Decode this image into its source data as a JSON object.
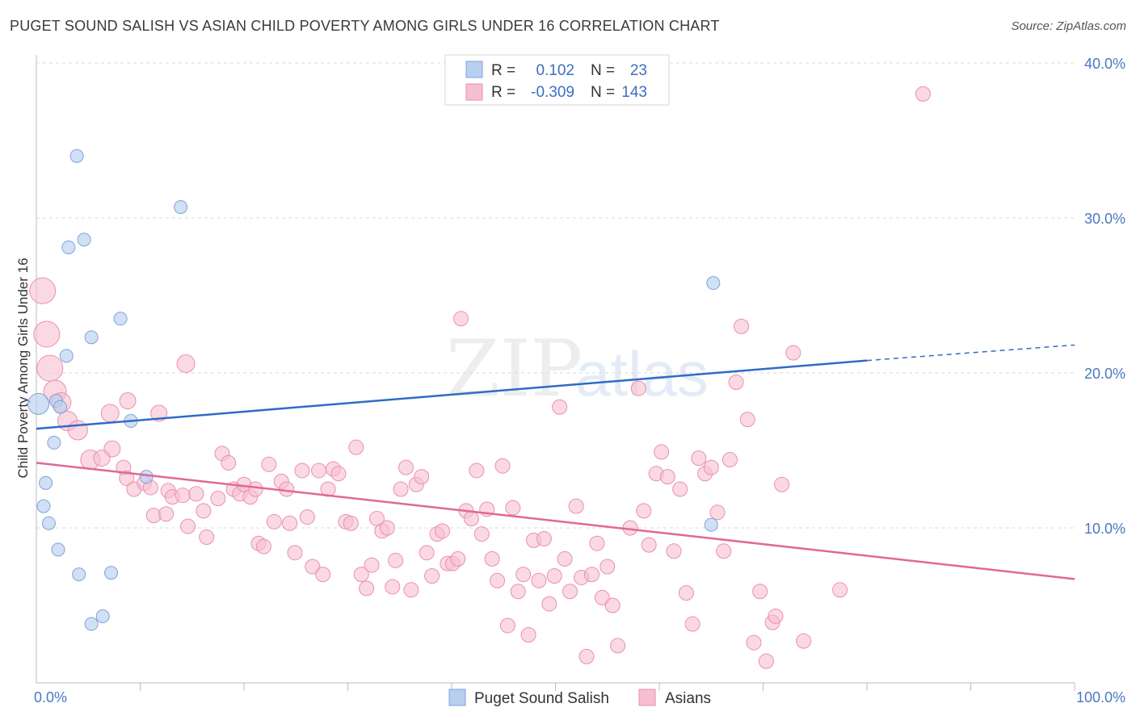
{
  "title": "PUGET SOUND SALISH VS ASIAN CHILD POVERTY AMONG GIRLS UNDER 16 CORRELATION CHART",
  "source": "Source: ZipAtlas.com",
  "watermark": {
    "zip": "ZIP",
    "atlas": "atlas"
  },
  "colors": {
    "salish_fill": "#b8cff0",
    "salish_stroke": "#7ea3dc",
    "salish_line": "#2f6cc4",
    "asian_fill": "#f7bfd0",
    "asian_stroke": "#eb8fae",
    "asian_line": "#e06896",
    "grid": "#d9d9d9",
    "tick_label": "#4a78c2"
  },
  "legend": {
    "rows": [
      {
        "r_label": "R =",
        "r_value": "0.102",
        "n_label": "N =",
        "n_value": "23"
      },
      {
        "r_label": "R =",
        "r_value": "-0.309",
        "n_label": "N =",
        "n_value": "143"
      }
    ]
  },
  "chart_data": {
    "type": "scatter",
    "xlabel": "",
    "ylabel": "Child Poverty Among Girls Under 16",
    "xlim": [
      0,
      100
    ],
    "ylim": [
      0,
      40
    ],
    "x_tick_labels": [
      "0.0%",
      "100.0%"
    ],
    "y_ticks": [
      10,
      20,
      30,
      40
    ],
    "y_tick_labels": [
      "10.0%",
      "20.0%",
      "30.0%",
      "40.0%"
    ],
    "grid": true,
    "legend_position": "top-center",
    "series": [
      {
        "name": "Puget Sound Salish",
        "trend": {
          "x": [
            0,
            80
          ],
          "y": [
            16.4,
            20.8
          ],
          "dashed_to": [
            100,
            21.8
          ]
        },
        "points": [
          [
            0.2,
            18.0,
            13
          ],
          [
            3.9,
            34.0,
            8
          ],
          [
            13.9,
            30.7,
            8
          ],
          [
            4.6,
            28.6,
            8
          ],
          [
            3.1,
            28.1,
            8
          ],
          [
            8.1,
            23.5,
            8
          ],
          [
            5.3,
            22.3,
            8
          ],
          [
            2.9,
            21.1,
            8
          ],
          [
            1.9,
            18.2,
            8
          ],
          [
            2.3,
            17.8,
            8
          ],
          [
            9.1,
            16.9,
            8
          ],
          [
            1.7,
            15.5,
            8
          ],
          [
            10.6,
            13.3,
            8
          ],
          [
            0.9,
            12.9,
            8
          ],
          [
            0.7,
            11.4,
            8
          ],
          [
            1.2,
            10.3,
            8
          ],
          [
            2.1,
            8.6,
            8
          ],
          [
            4.1,
            7.0,
            8
          ],
          [
            7.2,
            7.1,
            8
          ],
          [
            6.4,
            4.3,
            8
          ],
          [
            5.3,
            3.8,
            8
          ],
          [
            65.0,
            10.2,
            8
          ],
          [
            65.2,
            25.8,
            8
          ]
        ]
      },
      {
        "name": "Asians",
        "trend": {
          "x": [
            0,
            100
          ],
          "y": [
            14.2,
            6.7
          ]
        },
        "points": [
          [
            0.6,
            25.3,
            16
          ],
          [
            1.0,
            22.5,
            16
          ],
          [
            1.3,
            20.3,
            16
          ],
          [
            1.8,
            18.8,
            14
          ],
          [
            2.4,
            18.1,
            12
          ],
          [
            3.0,
            16.9,
            12
          ],
          [
            4.0,
            16.3,
            12
          ],
          [
            7.1,
            17.4,
            11
          ],
          [
            8.8,
            18.2,
            10
          ],
          [
            11.8,
            17.4,
            10
          ],
          [
            14.4,
            20.6,
            11
          ],
          [
            7.3,
            15.1,
            10
          ],
          [
            5.2,
            14.4,
            12
          ],
          [
            6.3,
            14.5,
            10
          ],
          [
            8.4,
            13.9,
            9
          ],
          [
            8.7,
            13.2,
            9
          ],
          [
            9.4,
            12.5,
            9
          ],
          [
            10.4,
            12.9,
            9
          ],
          [
            11.0,
            12.6,
            9
          ],
          [
            11.3,
            10.8,
            9
          ],
          [
            12.5,
            10.9,
            9
          ],
          [
            12.7,
            12.4,
            9
          ],
          [
            13.1,
            12.0,
            9
          ],
          [
            14.1,
            12.1,
            9
          ],
          [
            14.6,
            10.1,
            9
          ],
          [
            15.4,
            12.2,
            9
          ],
          [
            16.1,
            11.1,
            9
          ],
          [
            16.4,
            9.4,
            9
          ],
          [
            17.5,
            11.9,
            9
          ],
          [
            17.9,
            14.8,
            9
          ],
          [
            18.5,
            14.2,
            9
          ],
          [
            19.0,
            12.5,
            9
          ],
          [
            19.6,
            12.2,
            9
          ],
          [
            20.0,
            12.8,
            9
          ],
          [
            20.6,
            12.0,
            9
          ],
          [
            21.1,
            12.5,
            9
          ],
          [
            21.4,
            9.0,
            9
          ],
          [
            21.9,
            8.8,
            9
          ],
          [
            22.4,
            14.1,
            9
          ],
          [
            22.9,
            10.4,
            9
          ],
          [
            23.6,
            13.0,
            9
          ],
          [
            24.1,
            12.5,
            9
          ],
          [
            24.4,
            10.3,
            9
          ],
          [
            24.9,
            8.4,
            9
          ],
          [
            25.6,
            13.7,
            9
          ],
          [
            26.1,
            10.7,
            9
          ],
          [
            26.6,
            7.5,
            9
          ],
          [
            27.2,
            13.7,
            9
          ],
          [
            27.6,
            7.0,
            9
          ],
          [
            28.1,
            12.5,
            9
          ],
          [
            28.6,
            13.8,
            9
          ],
          [
            29.1,
            13.5,
            9
          ],
          [
            29.8,
            10.4,
            9
          ],
          [
            30.3,
            10.3,
            9
          ],
          [
            30.8,
            15.2,
            9
          ],
          [
            31.3,
            7.0,
            9
          ],
          [
            31.8,
            6.1,
            9
          ],
          [
            32.3,
            7.6,
            9
          ],
          [
            32.8,
            10.6,
            9
          ],
          [
            33.3,
            9.8,
            9
          ],
          [
            33.8,
            10.0,
            9
          ],
          [
            34.3,
            6.2,
            9
          ],
          [
            34.6,
            7.9,
            9
          ],
          [
            35.1,
            12.5,
            9
          ],
          [
            35.6,
            13.9,
            9
          ],
          [
            36.1,
            6.0,
            9
          ],
          [
            36.6,
            12.8,
            9
          ],
          [
            37.1,
            13.3,
            9
          ],
          [
            37.6,
            8.4,
            9
          ],
          [
            38.1,
            6.9,
            9
          ],
          [
            38.6,
            9.6,
            9
          ],
          [
            39.1,
            9.8,
            9
          ],
          [
            39.6,
            7.7,
            9
          ],
          [
            40.1,
            7.7,
            9
          ],
          [
            40.6,
            8.0,
            9
          ],
          [
            40.9,
            23.5,
            9
          ],
          [
            41.4,
            11.1,
            9
          ],
          [
            41.9,
            10.6,
            9
          ],
          [
            42.4,
            13.7,
            9
          ],
          [
            42.9,
            9.6,
            9
          ],
          [
            43.4,
            11.2,
            9
          ],
          [
            43.9,
            8.0,
            9
          ],
          [
            44.4,
            6.6,
            9
          ],
          [
            44.9,
            14.0,
            9
          ],
          [
            45.4,
            3.7,
            9
          ],
          [
            45.9,
            11.3,
            9
          ],
          [
            46.4,
            5.9,
            9
          ],
          [
            46.9,
            7.0,
            9
          ],
          [
            47.4,
            3.1,
            9
          ],
          [
            47.9,
            9.2,
            9
          ],
          [
            48.4,
            6.6,
            9
          ],
          [
            48.9,
            9.3,
            9
          ],
          [
            49.4,
            5.1,
            9
          ],
          [
            49.9,
            6.9,
            9
          ],
          [
            50.4,
            17.8,
            9
          ],
          [
            50.9,
            8.0,
            9
          ],
          [
            51.4,
            5.9,
            9
          ],
          [
            52.0,
            11.4,
            9
          ],
          [
            52.5,
            6.8,
            9
          ],
          [
            53.0,
            1.7,
            9
          ],
          [
            53.5,
            7.0,
            9
          ],
          [
            54.0,
            9.0,
            9
          ],
          [
            54.5,
            5.5,
            9
          ],
          [
            55.0,
            7.5,
            9
          ],
          [
            55.5,
            5.0,
            9
          ],
          [
            56.0,
            2.4,
            9
          ],
          [
            57.2,
            10.0,
            9
          ],
          [
            58.0,
            19.0,
            9
          ],
          [
            58.5,
            11.1,
            9
          ],
          [
            59.0,
            8.9,
            9
          ],
          [
            59.7,
            13.5,
            9
          ],
          [
            60.2,
            14.9,
            9
          ],
          [
            60.8,
            13.3,
            9
          ],
          [
            61.4,
            8.5,
            9
          ],
          [
            62.0,
            12.5,
            9
          ],
          [
            62.6,
            5.8,
            9
          ],
          [
            63.2,
            3.8,
            9
          ],
          [
            63.8,
            14.5,
            9
          ],
          [
            64.4,
            13.5,
            9
          ],
          [
            65.0,
            13.9,
            9
          ],
          [
            65.6,
            11.0,
            9
          ],
          [
            66.2,
            8.5,
            9
          ],
          [
            66.8,
            14.4,
            9
          ],
          [
            67.4,
            19.4,
            9
          ],
          [
            67.9,
            23.0,
            9
          ],
          [
            68.5,
            17.0,
            9
          ],
          [
            69.1,
            2.6,
            9
          ],
          [
            69.7,
            5.9,
            9
          ],
          [
            70.3,
            1.4,
            9
          ],
          [
            70.9,
            3.9,
            9
          ],
          [
            71.2,
            4.3,
            9
          ],
          [
            71.8,
            12.8,
            9
          ],
          [
            72.9,
            21.3,
            9
          ],
          [
            73.9,
            2.7,
            9
          ],
          [
            77.4,
            6.0,
            9
          ],
          [
            85.4,
            38.0,
            9
          ]
        ]
      }
    ],
    "legend_entries": [
      "Puget Sound Salish",
      "Asians"
    ]
  }
}
